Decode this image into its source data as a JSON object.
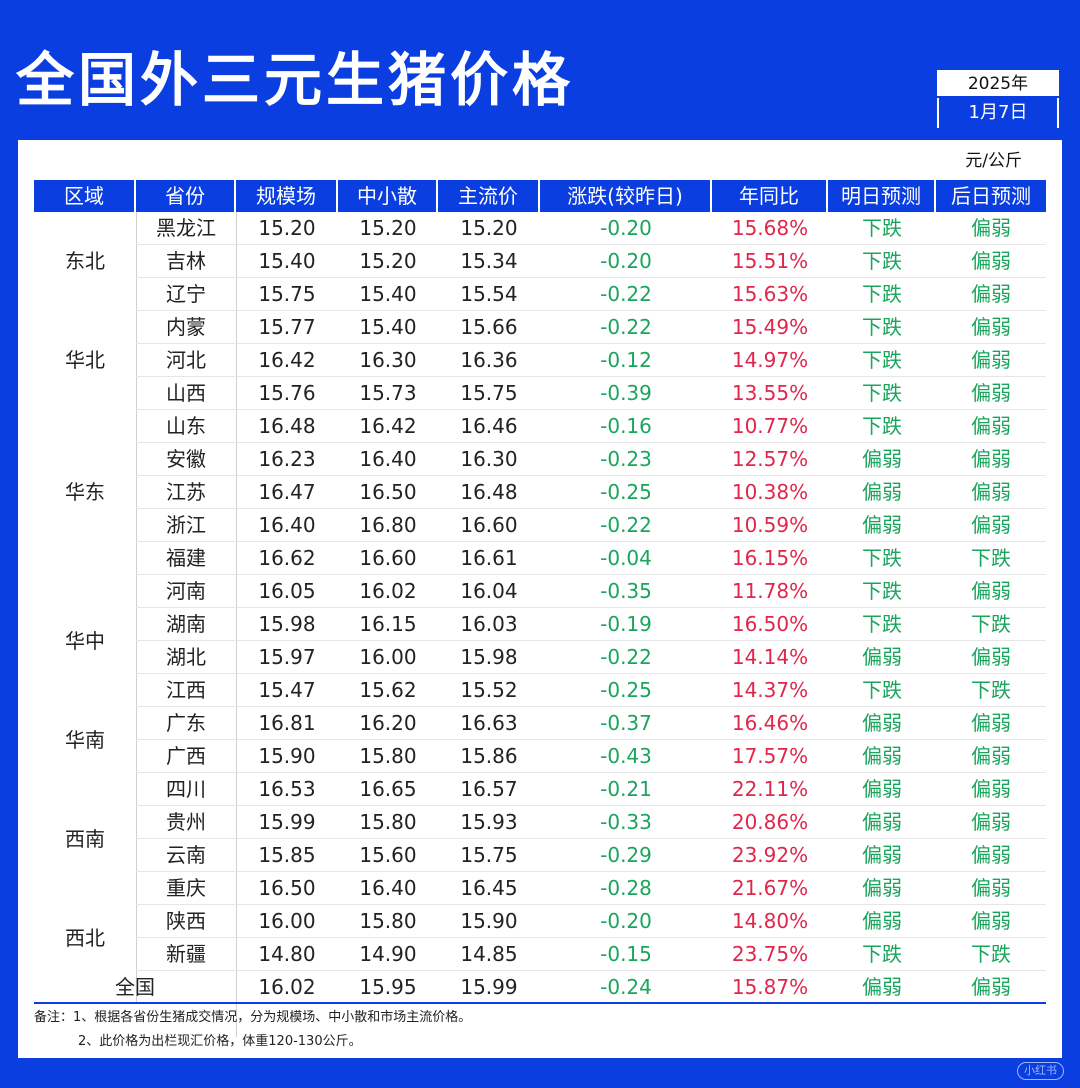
{
  "title": "全国外三元生猪价格",
  "date": {
    "year": "2025年",
    "day": "1月7日"
  },
  "unit": "元/公斤",
  "headers": [
    "区域",
    "省份",
    "规模场",
    "中小散",
    "主流价",
    "涨跌(较昨日)",
    "年同比",
    "明日预测",
    "后日预测"
  ],
  "regions": [
    {
      "name": "东北",
      "rows": [
        0,
        2
      ]
    },
    {
      "name": "华北",
      "rows": [
        3,
        5
      ]
    },
    {
      "name": "华东",
      "rows": [
        6,
        10
      ]
    },
    {
      "name": "华中",
      "rows": [
        11,
        14
      ]
    },
    {
      "name": "华南",
      "rows": [
        15,
        16
      ]
    },
    {
      "name": "西南",
      "rows": [
        17,
        20
      ]
    },
    {
      "name": "西北",
      "rows": [
        21,
        22
      ]
    }
  ],
  "rows": [
    [
      "黑龙江",
      "15.20",
      "15.20",
      "15.20",
      "-0.20",
      "15.68%",
      "下跌",
      "偏弱"
    ],
    [
      "吉林",
      "15.40",
      "15.20",
      "15.34",
      "-0.20",
      "15.51%",
      "下跌",
      "偏弱"
    ],
    [
      "辽宁",
      "15.75",
      "15.40",
      "15.54",
      "-0.22",
      "15.63%",
      "下跌",
      "偏弱"
    ],
    [
      "内蒙",
      "15.77",
      "15.40",
      "15.66",
      "-0.22",
      "15.49%",
      "下跌",
      "偏弱"
    ],
    [
      "河北",
      "16.42",
      "16.30",
      "16.36",
      "-0.12",
      "14.97%",
      "下跌",
      "偏弱"
    ],
    [
      "山西",
      "15.76",
      "15.73",
      "15.75",
      "-0.39",
      "13.55%",
      "下跌",
      "偏弱"
    ],
    [
      "山东",
      "16.48",
      "16.42",
      "16.46",
      "-0.16",
      "10.77%",
      "下跌",
      "偏弱"
    ],
    [
      "安徽",
      "16.23",
      "16.40",
      "16.30",
      "-0.23",
      "12.57%",
      "偏弱",
      "偏弱"
    ],
    [
      "江苏",
      "16.47",
      "16.50",
      "16.48",
      "-0.25",
      "10.38%",
      "偏弱",
      "偏弱"
    ],
    [
      "浙江",
      "16.40",
      "16.80",
      "16.60",
      "-0.22",
      "10.59%",
      "偏弱",
      "偏弱"
    ],
    [
      "福建",
      "16.62",
      "16.60",
      "16.61",
      "-0.04",
      "16.15%",
      "下跌",
      "下跌"
    ],
    [
      "河南",
      "16.05",
      "16.02",
      "16.04",
      "-0.35",
      "11.78%",
      "下跌",
      "偏弱"
    ],
    [
      "湖南",
      "15.98",
      "16.15",
      "16.03",
      "-0.19",
      "16.50%",
      "下跌",
      "下跌"
    ],
    [
      "湖北",
      "15.97",
      "16.00",
      "15.98",
      "-0.22",
      "14.14%",
      "偏弱",
      "偏弱"
    ],
    [
      "江西",
      "15.47",
      "15.62",
      "15.52",
      "-0.25",
      "14.37%",
      "下跌",
      "下跌"
    ],
    [
      "广东",
      "16.81",
      "16.20",
      "16.63",
      "-0.37",
      "16.46%",
      "偏弱",
      "偏弱"
    ],
    [
      "广西",
      "15.90",
      "15.80",
      "15.86",
      "-0.43",
      "17.57%",
      "偏弱",
      "偏弱"
    ],
    [
      "四川",
      "16.53",
      "16.65",
      "16.57",
      "-0.21",
      "22.11%",
      "偏弱",
      "偏弱"
    ],
    [
      "贵州",
      "15.99",
      "15.80",
      "15.93",
      "-0.33",
      "20.86%",
      "偏弱",
      "偏弱"
    ],
    [
      "云南",
      "15.85",
      "15.60",
      "15.75",
      "-0.29",
      "23.92%",
      "偏弱",
      "偏弱"
    ],
    [
      "重庆",
      "16.50",
      "16.40",
      "16.45",
      "-0.28",
      "21.67%",
      "偏弱",
      "偏弱"
    ],
    [
      "陕西",
      "16.00",
      "15.80",
      "15.90",
      "-0.20",
      "14.80%",
      "偏弱",
      "偏弱"
    ],
    [
      "新疆",
      "14.80",
      "14.90",
      "14.85",
      "-0.15",
      "23.75%",
      "下跌",
      "下跌"
    ]
  ],
  "national": [
    "全国",
    "16.02",
    "15.95",
    "15.99",
    "-0.24",
    "15.87%",
    "偏弱",
    "偏弱"
  ],
  "notes": [
    "备注：1、根据各省份生猪成交情况，分为规模场、中小散和市场主流价格。",
    "2、此价格为出栏现汇价格，体重120-130公斤。"
  ],
  "watermark": "小红书",
  "colors": {
    "brand_blue": "#0a3ee0",
    "down_green": "#1aa55c",
    "yoy_red": "#e0264a"
  }
}
